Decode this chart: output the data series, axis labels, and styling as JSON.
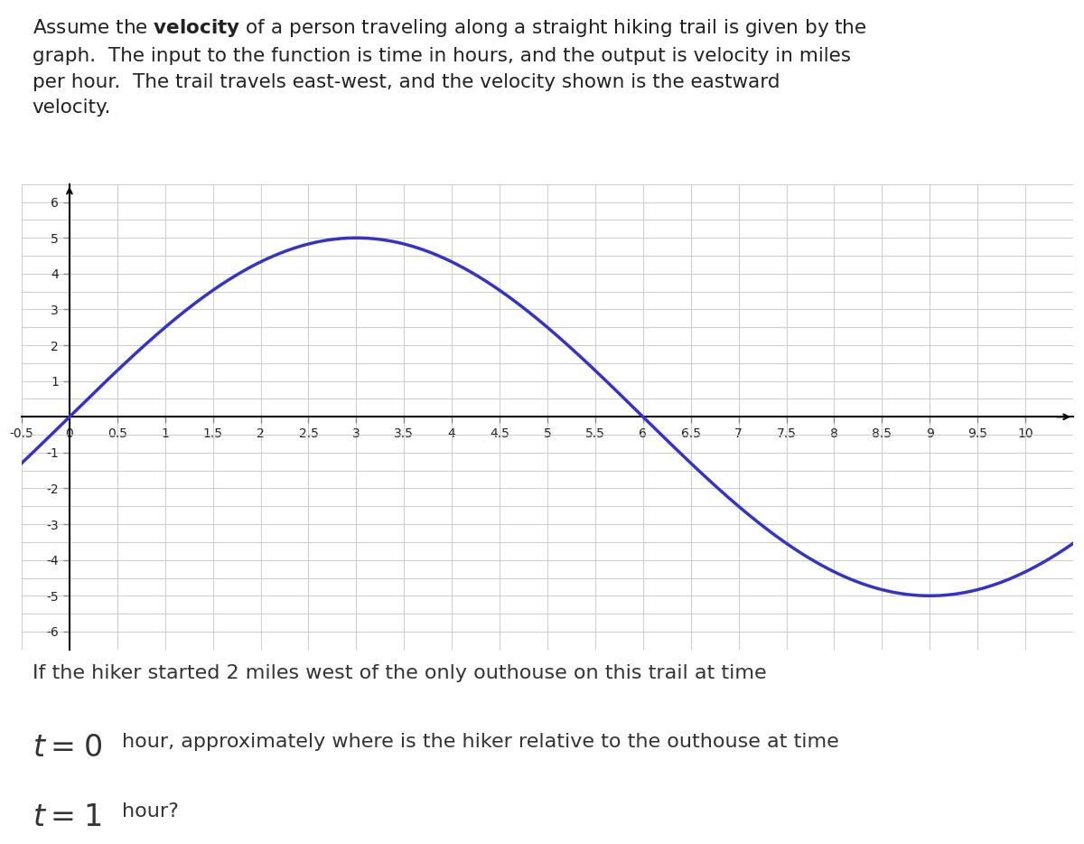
{
  "title_text": "Assume the **velocity** of a person traveling along a straight hiking trail is given by the\ngraph.  The input to the function is time in hours, and the output is velocity in miles\nper hour.  The trail travels east-west, and the velocity shown is the eastward\nvelocity.",
  "line_color": "#3333cc",
  "line_width": 2.5,
  "xlim": [
    -0.5,
    10.5
  ],
  "ylim": [
    -6.5,
    6.5
  ],
  "xticks": [
    -0.5,
    0,
    0.5,
    1,
    1.5,
    2,
    2.5,
    3,
    3.5,
    4,
    4.5,
    5,
    5.5,
    6,
    6.5,
    7,
    7.5,
    8,
    8.5,
    9,
    9.5,
    10
  ],
  "yticks": [
    -6,
    -5,
    -4,
    -3,
    -2,
    -1,
    0,
    1,
    2,
    3,
    4,
    5,
    6
  ],
  "x_minor_ticks": 0.5,
  "y_minor_ticks": 1,
  "grid_color": "#cccccc",
  "axis_color": "#000000",
  "background_color": "#ffffff",
  "curve_amplitude": 5,
  "curve_period": 12,
  "curve_phase": 0,
  "footer_text_line1": "If the hiker started 2 miles west of the only outhouse on this trail at time",
  "footer_text_line2_normal": " hour, approximately where is the hiker relative to the outhouse at time",
  "footer_text_line3_normal": " hour?",
  "footer_t0": "t = 0",
  "footer_t1": "t = 1",
  "tick_fontsize": 11,
  "footer_fontsize": 16,
  "footer_formula_fontsize": 24
}
